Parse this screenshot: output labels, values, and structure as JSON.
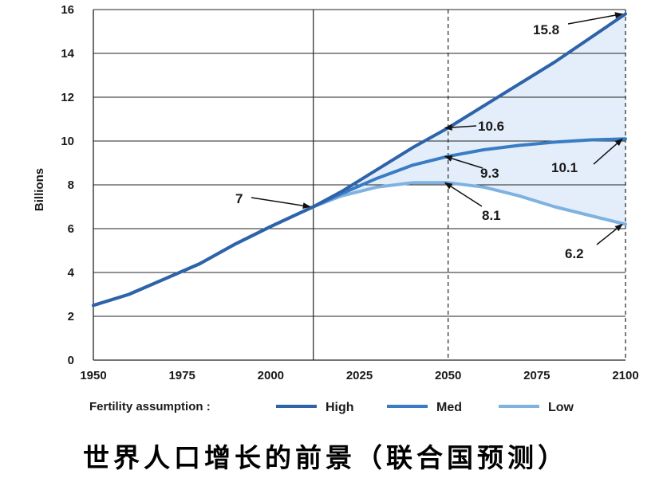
{
  "chart_data": {
    "type": "line",
    "ylabel": "Billions",
    "xlim": [
      1950,
      2100
    ],
    "ylim": [
      0,
      16
    ],
    "x_ticks": [
      1950,
      1975,
      2000,
      2025,
      2050,
      2075,
      2100
    ],
    "y_ticks": [
      0,
      2,
      4,
      6,
      8,
      10,
      12,
      14,
      16
    ],
    "grid": "horizontal",
    "reference_lines": [
      2012,
      2050,
      2100
    ],
    "legend_title": "Fertility assumption :",
    "legend_position": "bottom",
    "series": [
      {
        "name": "High",
        "color": "#2e63a9",
        "x": [
          1950,
          1960,
          1970,
          1980,
          1990,
          2000,
          2012,
          2020,
          2030,
          2040,
          2050,
          2060,
          2070,
          2080,
          2090,
          2100
        ],
        "values": [
          2.5,
          3.0,
          3.7,
          4.4,
          5.3,
          6.1,
          7.0,
          7.7,
          8.7,
          9.7,
          10.6,
          11.6,
          12.6,
          13.6,
          14.7,
          15.8
        ]
      },
      {
        "name": "Med",
        "color": "#3a7cc4",
        "x": [
          1950,
          1960,
          1970,
          1980,
          1990,
          2000,
          2012,
          2020,
          2030,
          2040,
          2050,
          2060,
          2070,
          2080,
          2090,
          2100
        ],
        "values": [
          2.5,
          3.0,
          3.7,
          4.4,
          5.3,
          6.1,
          7.0,
          7.6,
          8.3,
          8.9,
          9.3,
          9.6,
          9.8,
          9.95,
          10.05,
          10.1
        ]
      },
      {
        "name": "Low",
        "color": "#7fb2e0",
        "x": [
          1950,
          1960,
          1970,
          1980,
          1990,
          2000,
          2012,
          2020,
          2030,
          2040,
          2050,
          2060,
          2070,
          2080,
          2090,
          2100
        ],
        "values": [
          2.5,
          3.0,
          3.7,
          4.4,
          5.3,
          6.1,
          7.0,
          7.5,
          7.9,
          8.1,
          8.1,
          7.9,
          7.5,
          7.0,
          6.6,
          6.2
        ]
      }
    ],
    "annotations": [
      {
        "text": "7",
        "x": 2012,
        "y": 7.0
      },
      {
        "text": "10.6",
        "x": 2050,
        "y": 10.6
      },
      {
        "text": "9.3",
        "x": 2050,
        "y": 9.3
      },
      {
        "text": "8.1",
        "x": 2050,
        "y": 8.1
      },
      {
        "text": "15.8",
        "x": 2100,
        "y": 15.8
      },
      {
        "text": "10.1",
        "x": 2100,
        "y": 10.1
      },
      {
        "text": "6.2",
        "x": 2100,
        "y": 6.2
      }
    ]
  },
  "caption": "世界人口增长的前景（联合国预测）",
  "colors": {
    "fill_band": "#e3eefa",
    "grid": "#222222",
    "axis": "#222222"
  }
}
